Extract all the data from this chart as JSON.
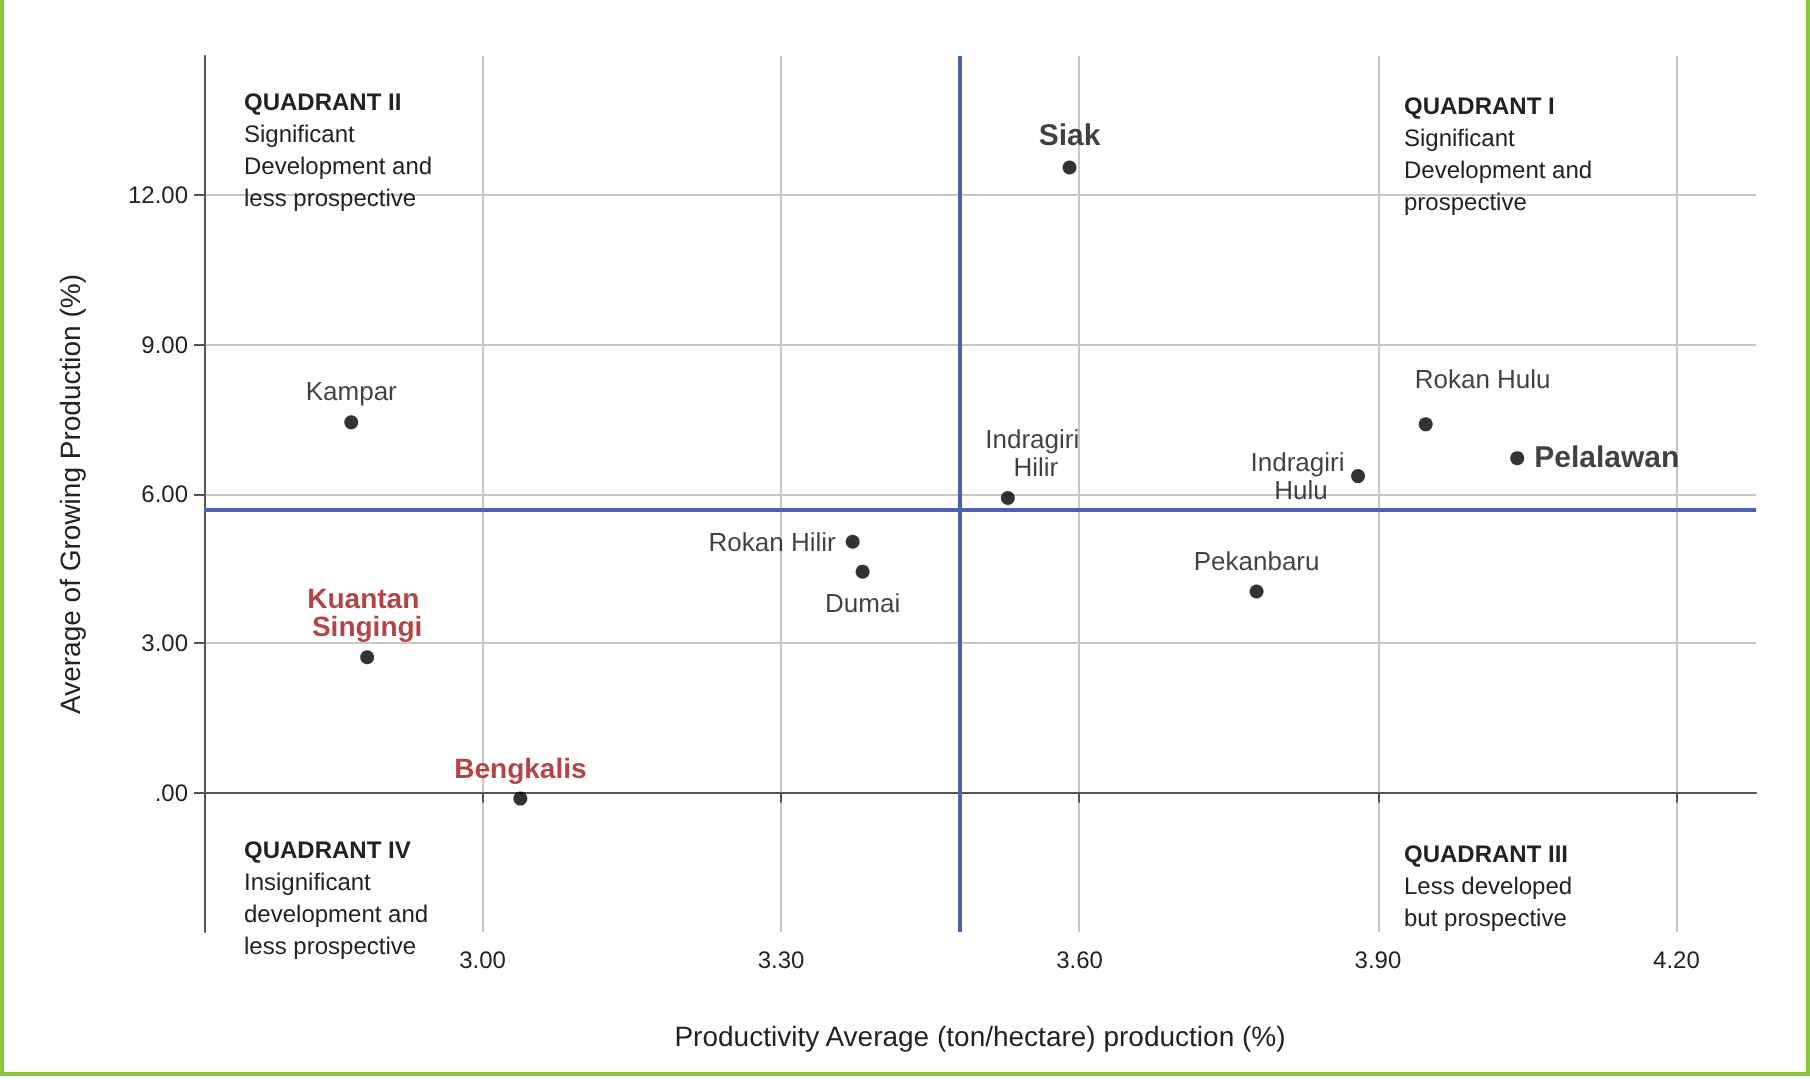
{
  "chart_data": {
    "type": "scatter",
    "xlabel": "Productivity Average (ton/hectare) production (%)",
    "ylabel": "Average of Growing Production (%)",
    "xlim": [
      2.72,
      4.28
    ],
    "xticks": [
      {
        "value": 3.0,
        "label": "3.00"
      },
      {
        "value": 3.3,
        "label": "3.30"
      },
      {
        "value": 3.6,
        "label": "3.60"
      },
      {
        "value": 3.9,
        "label": "3.90"
      },
      {
        "value": 4.2,
        "label": "4.20"
      }
    ],
    "ylim": [
      -2.8,
      14.8
    ],
    "yticks": [
      {
        "value": 0,
        "label": ".00"
      },
      {
        "value": 3,
        "label": "3.00"
      },
      {
        "value": 6,
        "label": "6.00"
      },
      {
        "value": 9,
        "label": "9.00"
      },
      {
        "value": 12,
        "label": "12.00"
      }
    ],
    "grid": true,
    "legend": false,
    "marker": "circle",
    "series": [
      {
        "name": "Siak",
        "color": "#000000",
        "x": [
          3.59
        ],
        "values": [
          12.56
        ]
      },
      {
        "name": "Kampar",
        "color": "#000000",
        "x": [
          2.868
        ],
        "values": [
          7.44
        ]
      },
      {
        "name": "Rokan Hulu",
        "color": "#000000",
        "x": [
          3.948
        ],
        "values": [
          7.4
        ]
      },
      {
        "name": "Pelalawan",
        "color": "#000000",
        "x": [
          4.04
        ],
        "values": [
          6.72
        ]
      },
      {
        "name": "Indragiri Hilir",
        "color": "#000000",
        "x": [
          3.528
        ],
        "values": [
          5.92
        ]
      },
      {
        "name": "Indragiri Hulu",
        "color": "#000000",
        "x": [
          3.88
        ],
        "values": [
          6.36
        ]
      },
      {
        "name": "Rokan Hilir",
        "color": "#000000",
        "x": [
          3.372
        ],
        "values": [
          5.04
        ]
      },
      {
        "name": "Dumai",
        "color": "#000000",
        "x": [
          3.382
        ],
        "values": [
          4.44
        ]
      },
      {
        "name": "Pekanbaru",
        "color": "#000000",
        "x": [
          3.778
        ],
        "values": [
          4.04
        ]
      },
      {
        "name": "Kuantan Singingi",
        "color": "#000000",
        "x": [
          2.884
        ],
        "values": [
          2.72
        ]
      },
      {
        "name": "Bengkalis",
        "color": "#000000",
        "x": [
          3.038
        ],
        "values": [
          -0.12
        ]
      }
    ],
    "ref_lines": [
      {
        "axis": "x",
        "value": 3.484,
        "color": "#4a63b5"
      },
      {
        "axis": "y",
        "value": 5.68,
        "color": "#4a63b5"
      }
    ],
    "annotations": [
      "QUADRANT II\nSignificant\nDevelopment and\nless prospective",
      "QUADRANT I\nSignificant\nDevelopment and\nprospective",
      "QUADRANT IV\nInsignificant\ndevelopment and\nless prospective",
      "QUADRANT III\nLess developed\nbut prospective"
    ]
  }
}
